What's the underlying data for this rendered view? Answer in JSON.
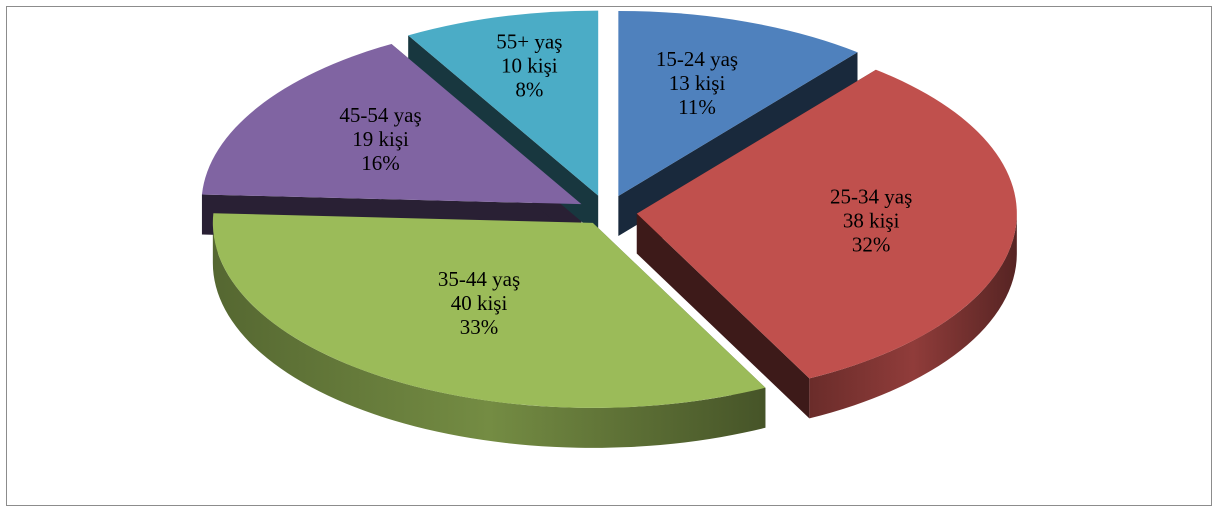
{
  "chart_data": {
    "type": "pie",
    "categories": [
      "15-24 yaş",
      "25-34  yaş",
      "35-44 yaş",
      "45-54 yaş",
      "55+ yaş"
    ],
    "values": [
      13,
      38,
      40,
      19,
      10
    ],
    "data_labels": [
      {
        "category": "15-24 yaş",
        "count": "13 kişi",
        "percent": "11%"
      },
      {
        "category": "25-34  yaş",
        "count": "38 kişi",
        "percent": "32%"
      },
      {
        "category": "35-44 yaş",
        "count": "40 kişi",
        "percent": "33%"
      },
      {
        "category": "45-54 yaş",
        "count": "19 kişi",
        "percent": "16%"
      },
      {
        "category": "55+ yaş",
        "count": "10 kişi",
        "percent": "8%"
      }
    ],
    "legend": "none",
    "exploded": true,
    "style": "3d",
    "colors": [
      "#4F81BD",
      "#C0504D",
      "#9BBB59",
      "#8064A2",
      "#4BACC6"
    ]
  }
}
